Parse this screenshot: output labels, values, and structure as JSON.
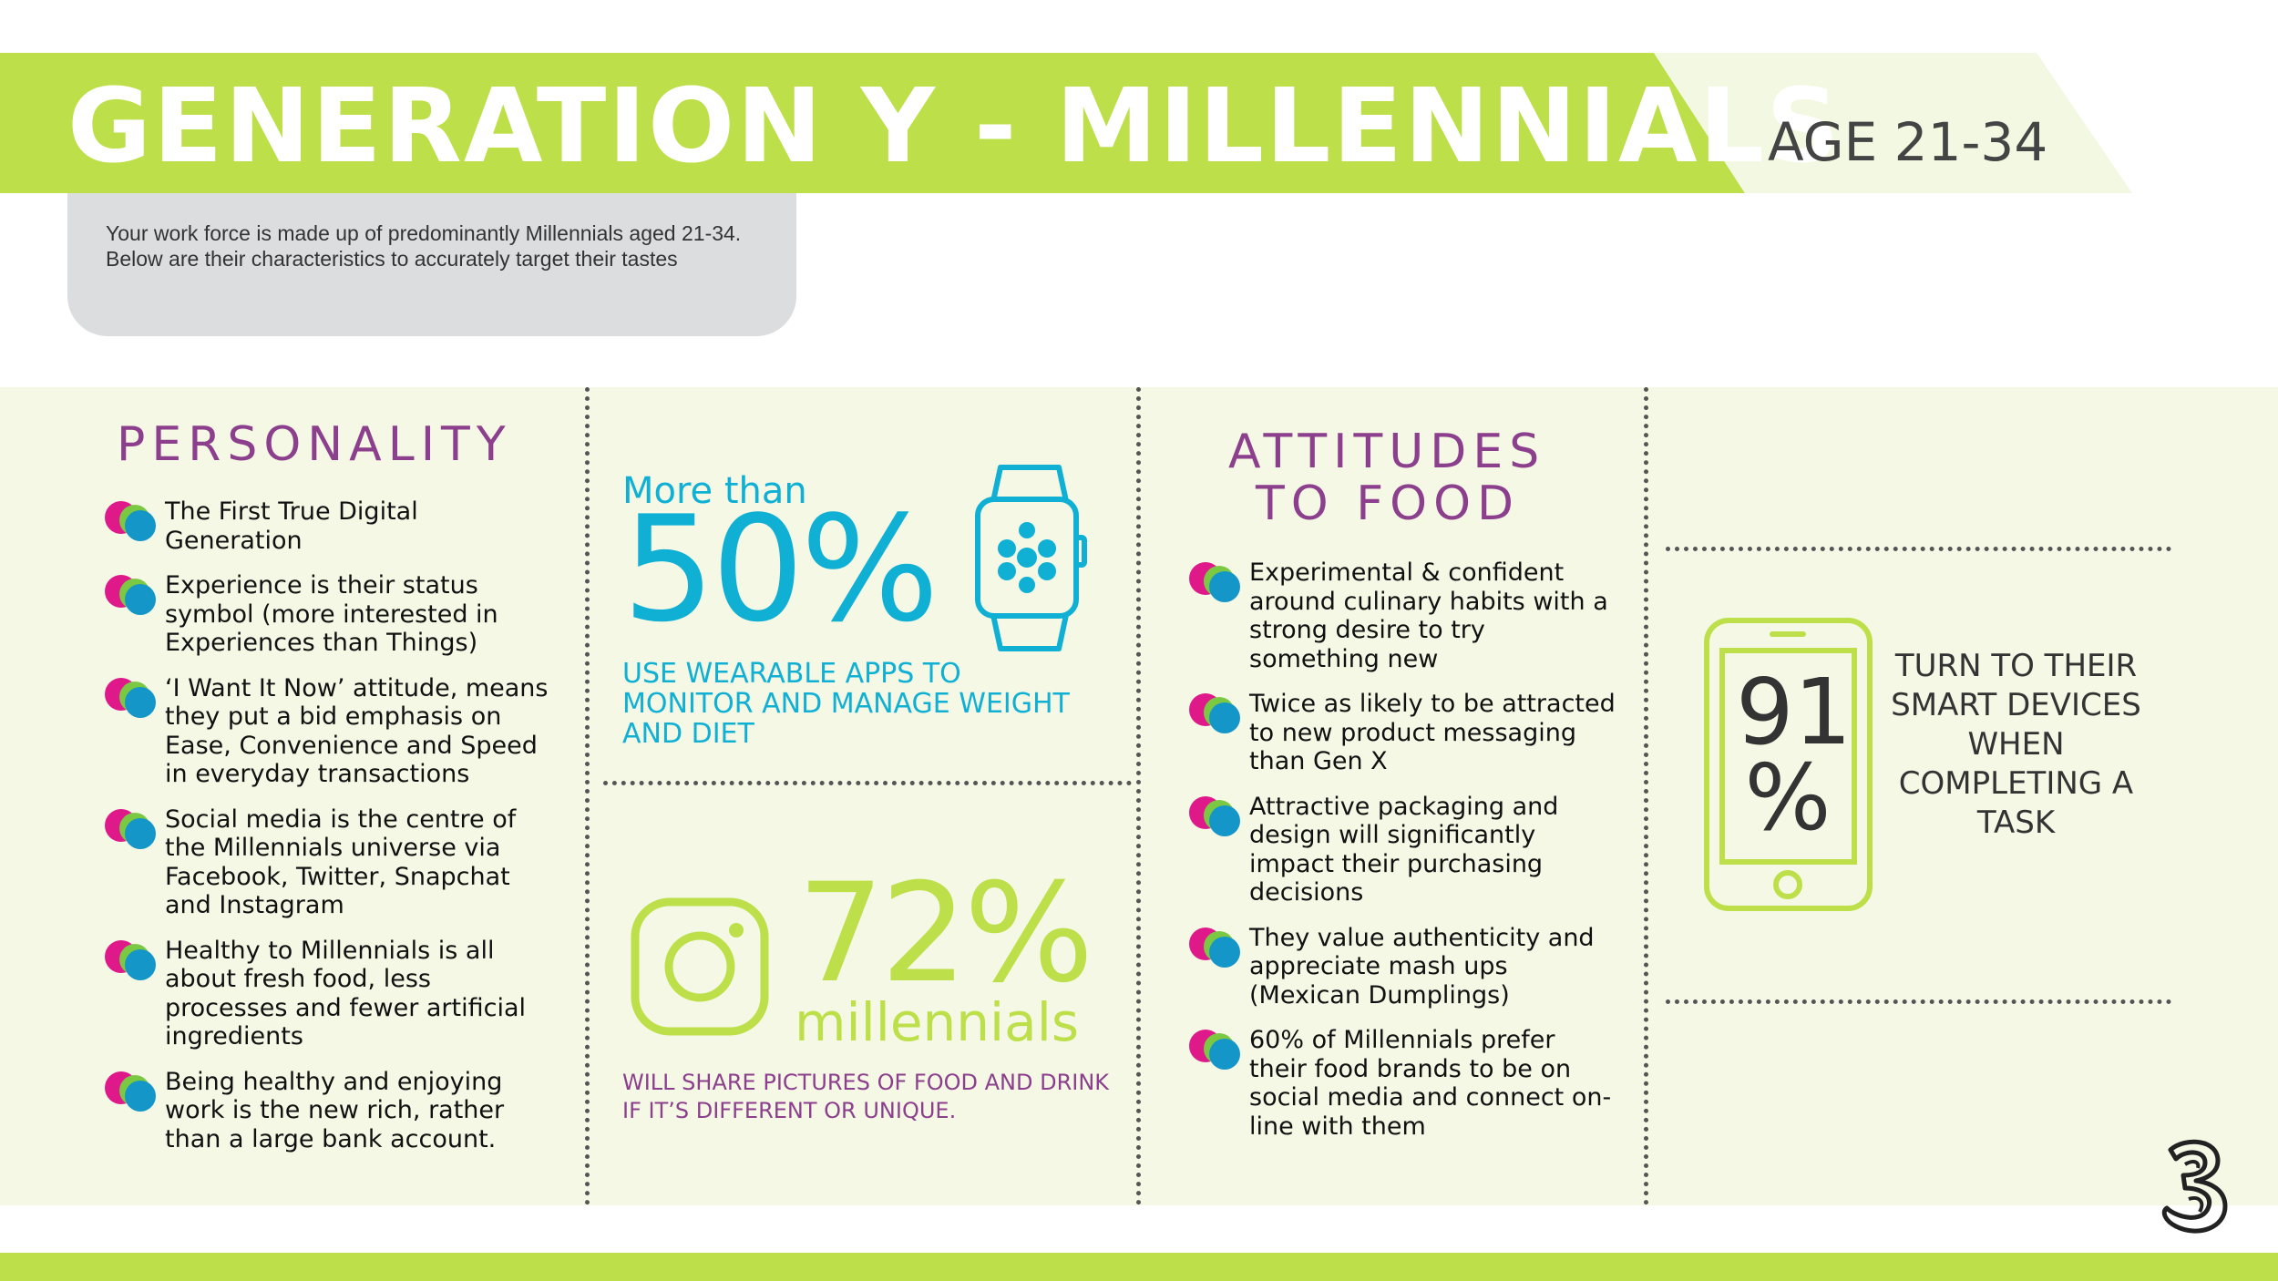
{
  "header": {
    "title": "GENERATION Y - MILLENNIALS",
    "age": "AGE 21-34"
  },
  "intro": {
    "text": "Your work force is made up of predominantly Millennials aged 21-34. Below are their characteristics to accurately target their tastes"
  },
  "personality": {
    "title": "PERSONALITY",
    "items": [
      "The First True Digital Generation",
      "Experience is their status symbol (more interested in Experiences than Things)",
      "‘I Want It Now’ attitude, means they put a bid emphasis on Ease, Convenience and Speed in everyday transactions",
      "Social media is the centre of the Millennials universe via Facebook, Twitter, Snapchat and Instagram",
      "Healthy to Millennials is all about fresh food, less processes and fewer artificial ingredients",
      "Being healthy and enjoying work is the new rich, rather than a large bank account."
    ]
  },
  "wearables": {
    "prefix": "More than",
    "percent": "50%",
    "caption": "USE WEARABLE APPS TO MONITOR AND MANAGE WEIGHT AND DIET"
  },
  "instagram": {
    "percent": "72%",
    "subject": "millennials",
    "caption": "WILL SHARE PICTURES OF FOOD AND DRINK IF IT’S DIFFERENT OR UNIQUE."
  },
  "attitudes": {
    "title_line1": "ATTITUDES",
    "title_line2": "TO FOOD",
    "items": [
      "Experimental & confident around culinary habits with a strong desire to try something new",
      "Twice as likely to be attracted to new product messaging than Gen X",
      "Attractive packaging and design will significantly impact their purchasing decisions",
      "They value authenticity and appreciate mash ups (Mexican Dumplings)",
      "60% of Millennials prefer their food brands to be on social media and connect on-line with them"
    ]
  },
  "devices": {
    "number": "91",
    "percent_sign": "%",
    "caption": "TURN TO THEIR SMART DEVICES WHEN COMPLETING A TASK"
  },
  "colors": {
    "green": "#bde04a",
    "pale_green": "#f4f8e5",
    "purple": "#8c3f8d",
    "blue": "#0fb0d4",
    "grey_box": "#dcdddf"
  },
  "icons": [
    "smartwatch-icon",
    "instagram-icon",
    "smartphone-icon",
    "three-logo",
    "bullet-dots-icon"
  ]
}
